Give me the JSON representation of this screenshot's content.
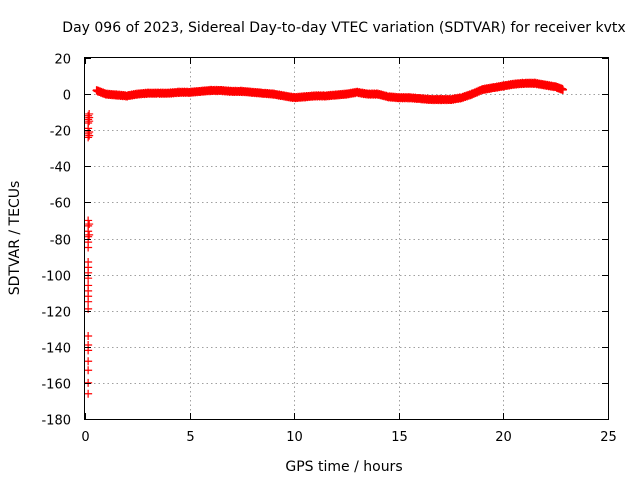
{
  "chart_data": {
    "type": "scatter",
    "title": "Day 096 of 2023, Sidereal Day-to-day VTEC variation (SDTVAR) for receiver kvtx",
    "xlabel": "GPS time / hours",
    "ylabel": "SDTVAR / TECUs",
    "xlim": [
      0,
      25
    ],
    "ylim": [
      -180,
      20
    ],
    "xticks": [
      0,
      5,
      10,
      15,
      20,
      25
    ],
    "yticks": [
      20,
      0,
      -20,
      -40,
      -60,
      -80,
      -100,
      -120,
      -140,
      -160,
      -180
    ],
    "grid": true,
    "marker": "plus",
    "color": "#ff0000",
    "series": [
      {
        "name": "SDTVAR",
        "outliers": [
          [
            0.15,
            -12
          ],
          [
            0.15,
            -14
          ],
          [
            0.15,
            -16
          ],
          [
            0.15,
            -19
          ],
          [
            0.15,
            -22
          ],
          [
            0.15,
            -24
          ],
          [
            0.2,
            -11
          ],
          [
            0.2,
            -13
          ],
          [
            0.2,
            -15
          ],
          [
            0.2,
            -21
          ],
          [
            0.2,
            -23
          ],
          [
            0.15,
            -70
          ],
          [
            0.15,
            -73
          ],
          [
            0.15,
            -76
          ],
          [
            0.15,
            -79
          ],
          [
            0.15,
            -82
          ],
          [
            0.15,
            -85
          ],
          [
            0.2,
            -72
          ],
          [
            0.2,
            -78
          ],
          [
            0.15,
            -93
          ],
          [
            0.15,
            -96
          ],
          [
            0.15,
            -99
          ],
          [
            0.15,
            -102
          ],
          [
            0.15,
            -106
          ],
          [
            0.15,
            -109
          ],
          [
            0.15,
            -112
          ],
          [
            0.15,
            -115
          ],
          [
            0.15,
            -119
          ],
          [
            0.15,
            -134
          ],
          [
            0.15,
            -139
          ],
          [
            0.15,
            -142
          ],
          [
            0.15,
            -148
          ],
          [
            0.15,
            -153
          ],
          [
            0.15,
            -160
          ],
          [
            0.15,
            -166
          ]
        ],
        "trend": [
          [
            0.55,
            2
          ],
          [
            1.0,
            0
          ],
          [
            1.5,
            -0.5
          ],
          [
            2.0,
            -1
          ],
          [
            2.5,
            0
          ],
          [
            3.0,
            0.5
          ],
          [
            3.5,
            0.5
          ],
          [
            4.0,
            0.5
          ],
          [
            4.5,
            1
          ],
          [
            5.0,
            1
          ],
          [
            5.5,
            1.5
          ],
          [
            6.0,
            2
          ],
          [
            6.5,
            2
          ],
          [
            7.0,
            1.5
          ],
          [
            7.5,
            1.5
          ],
          [
            8.0,
            1
          ],
          [
            8.5,
            0.5
          ],
          [
            9.0,
            0
          ],
          [
            9.5,
            -1
          ],
          [
            10.0,
            -2
          ],
          [
            10.5,
            -1.5
          ],
          [
            11.0,
            -1
          ],
          [
            11.5,
            -1
          ],
          [
            12.0,
            -0.5
          ],
          [
            12.5,
            0
          ],
          [
            13.0,
            1
          ],
          [
            13.5,
            0
          ],
          [
            14.0,
            0
          ],
          [
            14.5,
            -1.5
          ],
          [
            15.0,
            -2
          ],
          [
            15.5,
            -2
          ],
          [
            16.0,
            -2.5
          ],
          [
            16.5,
            -3
          ],
          [
            17.0,
            -3
          ],
          [
            17.5,
            -3
          ],
          [
            18.0,
            -2
          ],
          [
            18.5,
            0
          ],
          [
            19.0,
            2.5
          ],
          [
            19.5,
            3.5
          ],
          [
            20.0,
            4.5
          ],
          [
            20.5,
            5.5
          ],
          [
            21.0,
            6
          ],
          [
            21.5,
            6
          ],
          [
            22.0,
            5
          ],
          [
            22.5,
            4
          ],
          [
            22.85,
            2.5
          ]
        ]
      }
    ]
  }
}
